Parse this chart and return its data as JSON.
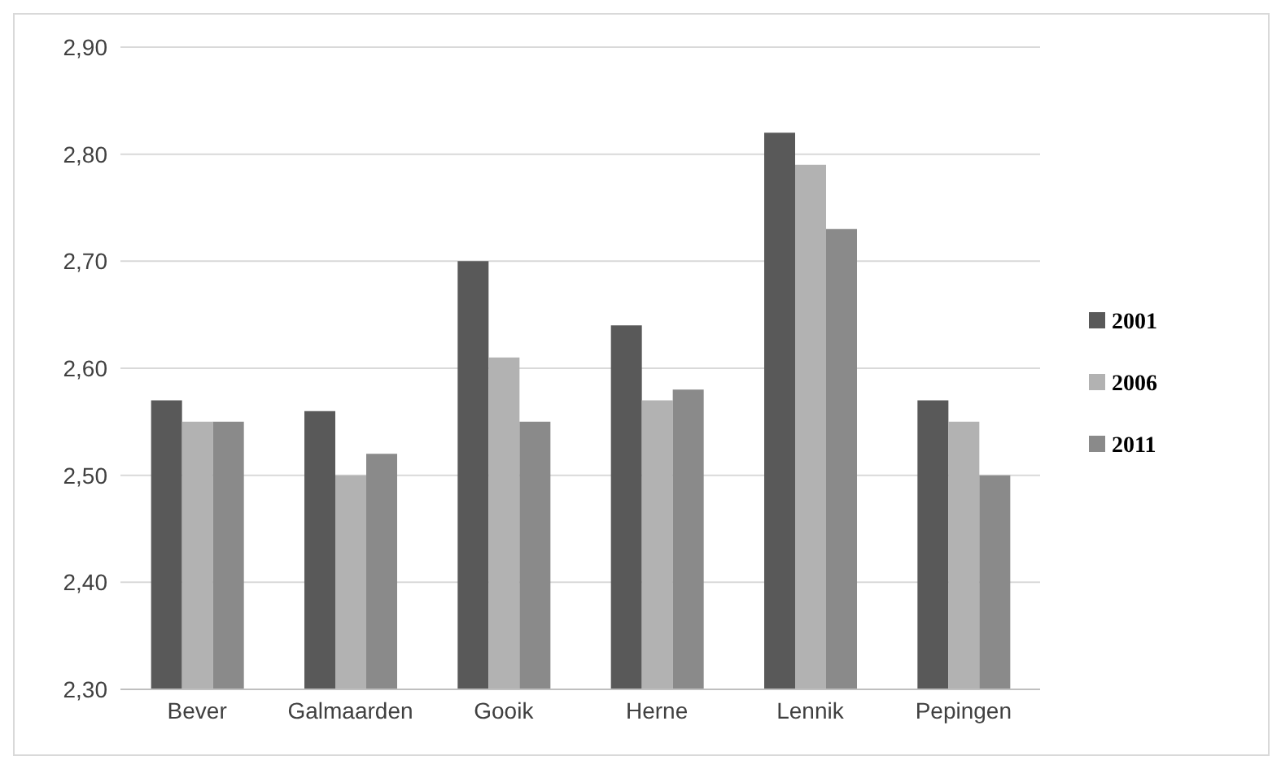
{
  "chart_data": {
    "type": "bar",
    "categories": [
      "Bever",
      "Galmaarden",
      "Gooik",
      "Herne",
      "Lennik",
      "Pepingen"
    ],
    "series": [
      {
        "name": "2001",
        "color": "#595959",
        "values": [
          2.57,
          2.56,
          2.7,
          2.64,
          2.82,
          2.57
        ]
      },
      {
        "name": "2006",
        "color": "#b2b2b2",
        "values": [
          2.55,
          2.5,
          2.61,
          2.57,
          2.79,
          2.55
        ]
      },
      {
        "name": "2011",
        "color": "#8a8a8a",
        "values": [
          2.55,
          2.52,
          2.55,
          2.58,
          2.73,
          2.5
        ]
      }
    ],
    "ylim": [
      2.3,
      2.9
    ],
    "yticks": [
      {
        "value": 2.3,
        "label": "2,30"
      },
      {
        "value": 2.4,
        "label": "2,40"
      },
      {
        "value": 2.5,
        "label": "2,50"
      },
      {
        "value": 2.6,
        "label": "2,60"
      },
      {
        "value": 2.7,
        "label": "2,70"
      },
      {
        "value": 2.8,
        "label": "2,80"
      },
      {
        "value": 2.9,
        "label": "2,90"
      }
    ],
    "grid": "y",
    "legend": "right"
  }
}
